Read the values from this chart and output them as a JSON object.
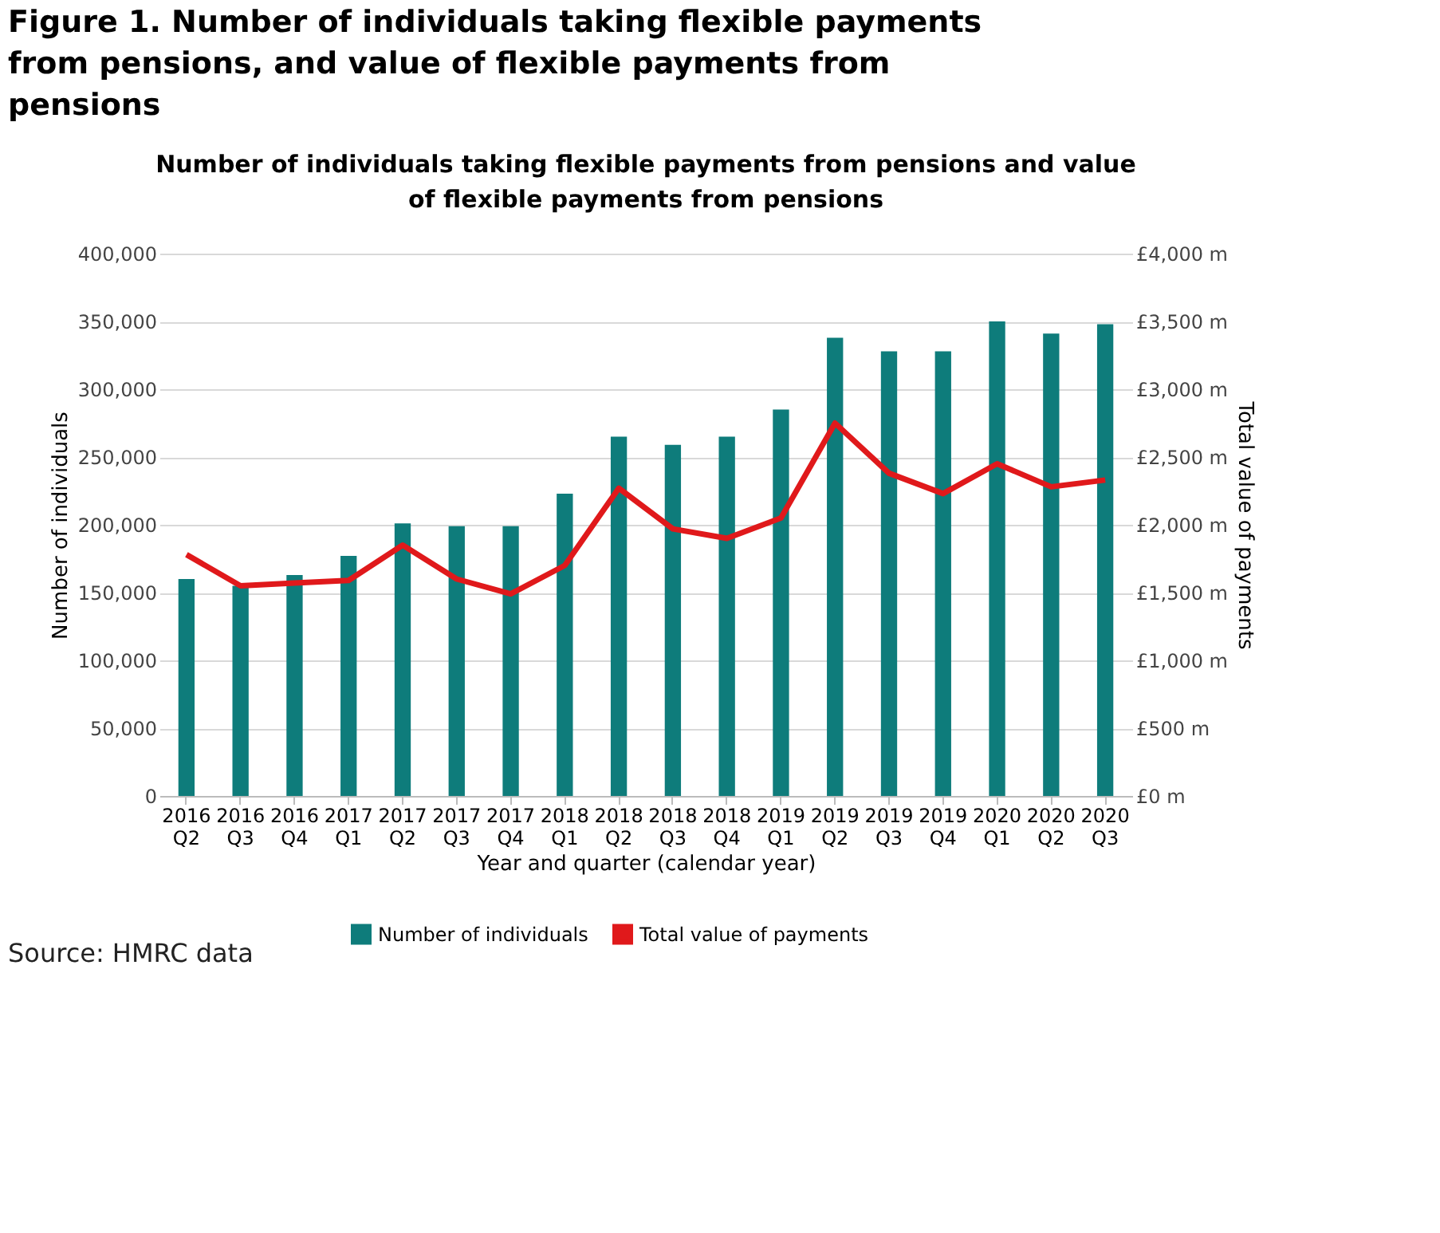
{
  "chart_data": {
    "type": "bar",
    "title": "Figure 1. Number of individuals taking flexible payments from pensions, and value of flexible payments from pensions",
    "subtitle": "Number of individuals taking flexible payments from pensions and value of flexible payments from pensions",
    "xlabel": "Year and quarter (calendar year)",
    "ylabel": "Number of individuals",
    "y2label": "Total value of payments",
    "annotations": [
      "Source: HMRC data"
    ],
    "categories": [
      "2016 Q2",
      "2016 Q3",
      "2016 Q4",
      "2017 Q1",
      "2017 Q2",
      "2017 Q3",
      "2017 Q4",
      "2018 Q1",
      "2018 Q2",
      "2018 Q3",
      "2018 Q4",
      "2019 Q1",
      "2019 Q2",
      "2019 Q3",
      "2019 Q4",
      "2020 Q1",
      "2020 Q2",
      "2020 Q3"
    ],
    "series": [
      {
        "name": "Number of individuals",
        "color": "#0e7c7b",
        "values": [
          160000,
          155000,
          163000,
          177000,
          201000,
          199000,
          199000,
          223000,
          265000,
          259000,
          265000,
          285000,
          338000,
          328000,
          328000,
          350000,
          341000,
          348000
        ]
      },
      {
        "name": "Total value of payments",
        "type": "line",
        "axis": "y2",
        "color": "#e0191b",
        "values": [
          1780,
          1550,
          1570,
          1590,
          1850,
          1600,
          1490,
          1700,
          2270,
          1970,
          1900,
          2050,
          2750,
          2380,
          2230,
          2450,
          2280,
          2330
        ]
      }
    ],
    "ylim": [
      0,
      400000
    ],
    "yticks": [
      {
        "value": 0,
        "label": "0"
      },
      {
        "value": 50000,
        "label": "50,000"
      },
      {
        "value": 100000,
        "label": "100,000"
      },
      {
        "value": 150000,
        "label": "150,000"
      },
      {
        "value": 200000,
        "label": "200,000"
      },
      {
        "value": 250000,
        "label": "250,000"
      },
      {
        "value": 300000,
        "label": "300,000"
      },
      {
        "value": 350000,
        "label": "350,000"
      },
      {
        "value": 400000,
        "label": "400,000"
      }
    ],
    "y2lim": [
      0,
      4000
    ],
    "y2ticks": [
      {
        "value": 0,
        "label": "£0 m"
      },
      {
        "value": 500,
        "label": "£500 m"
      },
      {
        "value": 1000,
        "label": "£1,000 m"
      },
      {
        "value": 1500,
        "label": "£1,500 m"
      },
      {
        "value": 2000,
        "label": "£2,000 m"
      },
      {
        "value": 2500,
        "label": "£2,500 m"
      },
      {
        "value": 3000,
        "label": "£3,000 m"
      },
      {
        "value": 3500,
        "label": "£3,500 m"
      },
      {
        "value": 4000,
        "label": "£4,000 m"
      }
    ],
    "grid": "y",
    "legend": "bottom",
    "marker": "none",
    "line_style": "solid"
  }
}
